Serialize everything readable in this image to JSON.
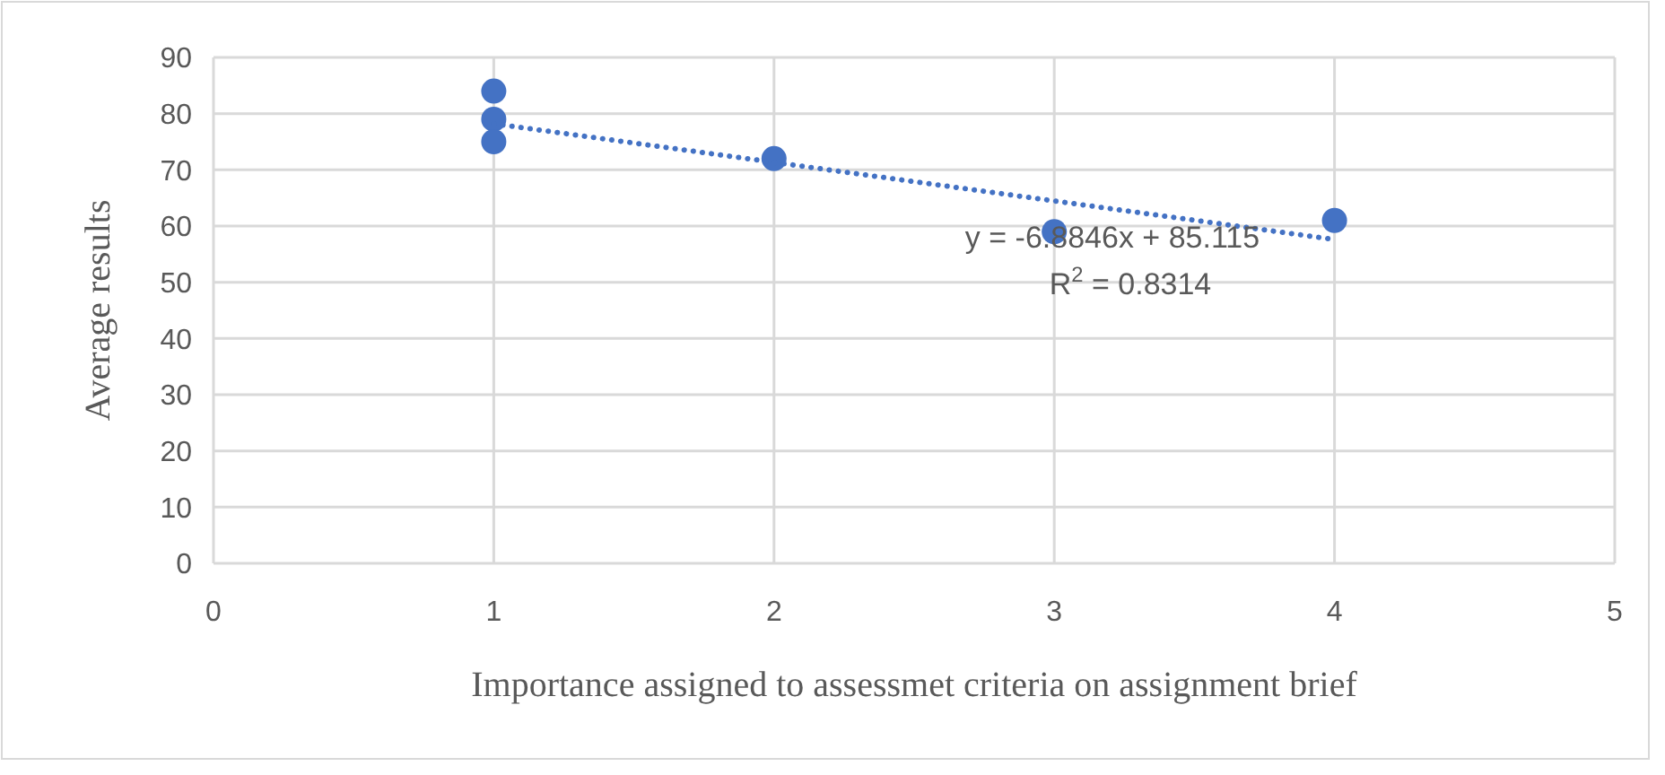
{
  "chart_data": {
    "type": "scatter",
    "xlabel": "Importance assigned to assessmet criteria on assignment brief",
    "ylabel": "Average results",
    "xlim": [
      0,
      5
    ],
    "xticks": [
      0,
      1,
      2,
      3,
      4,
      5
    ],
    "ylim": [
      0,
      90
    ],
    "yticks": [
      0,
      10,
      20,
      30,
      40,
      50,
      60,
      70,
      80,
      90
    ],
    "grid": true,
    "marker": "circle",
    "series": [
      {
        "color": "#4472c4",
        "x": [
          1,
          1,
          1,
          2,
          3,
          4
        ],
        "values": [
          84,
          79,
          75,
          72,
          59,
          61
        ]
      },
      {
        "type": "line",
        "color": "#4472c4",
        "line_style": "dotted",
        "marker": "none",
        "x": [
          1,
          4
        ],
        "values": [
          78.2,
          57.6
        ]
      }
    ],
    "annotations": [
      "y = -6.8846x + 85.115",
      "R$^{2}$ = 0.8314"
    ]
  }
}
